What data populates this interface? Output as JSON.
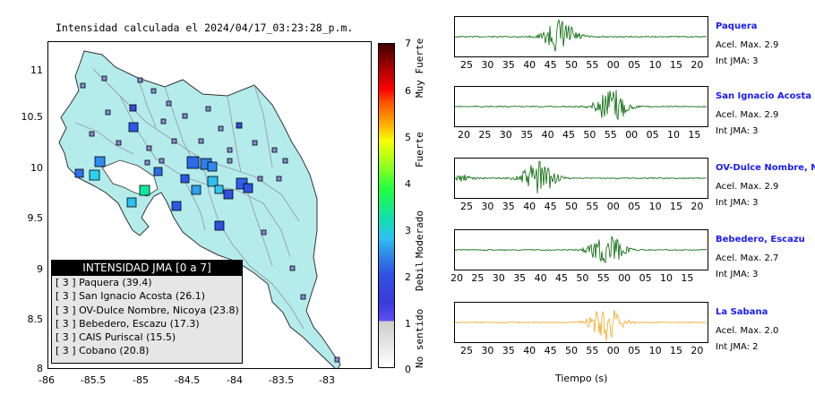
{
  "map": {
    "title": "Intensidad calculada el 2024/04/17_03:23:28_p.m.",
    "y_ticks": [
      "11",
      "10.5",
      "10",
      "9.5",
      "9",
      "8.5",
      "8"
    ],
    "x_ticks": [
      "-86",
      "-85.5",
      "-85",
      "-84.5",
      "-84",
      "-83.5",
      "-83"
    ],
    "legend": {
      "title": "INTENSIDAD JMA [0 a 7]",
      "rows": [
        "[ 3 ]  Paquera (39.4)",
        "[ 3 ]  San Ignacio Acosta (26.1)",
        "[ 3 ]  OV-Dulce Nombre, Nicoya (23.8)",
        "[ 3 ]  Bebedero, Escazu (17.3)",
        "[ 3 ]  CAIS Puriscal (15.5)",
        "[ 3 ]  Cobano (20.8)"
      ]
    }
  },
  "colorbar": {
    "ticks": [
      "7",
      "6",
      "5",
      "4",
      "3",
      "2",
      "1",
      "0"
    ],
    "labels": [
      "Muy Fuerte",
      "Fuerte",
      "Moderado",
      "Debil",
      "No sentido"
    ]
  },
  "traces": [
    {
      "name": "Paquera",
      "acel": "Acel. Max. 2.9",
      "int": "Int JMA: 3",
      "color": "#006400",
      "ticks": [
        "25",
        "30",
        "35",
        "40",
        "45",
        "50",
        "55",
        "00",
        "05",
        "10",
        "15",
        "20"
      ]
    },
    {
      "name": "San Ignacio Acosta",
      "acel": "Acel. Max. 2.9",
      "int": "Int JMA: 3",
      "color": "#006400",
      "ticks": [
        "20",
        "25",
        "30",
        "35",
        "40",
        "45",
        "50",
        "55",
        "00",
        "05",
        "10",
        "15"
      ]
    },
    {
      "name": "OV-Dulce Nombre, Nicoya",
      "acel": "Acel. Max. 2.9",
      "int": "Int JMA: 3",
      "color": "#006400",
      "ticks": [
        "25",
        "30",
        "35",
        "40",
        "45",
        "50",
        "55",
        "00",
        "05",
        "10",
        "15",
        "20"
      ]
    },
    {
      "name": "Bebedero, Escazu",
      "acel": "Acel. Max. 2.7",
      "int": "Int JMA: 3",
      "color": "#006400",
      "ticks": [
        "20",
        "25",
        "30",
        "35",
        "40",
        "45",
        "50",
        "55",
        "00",
        "05",
        "10",
        "15"
      ]
    },
    {
      "name": "La Sabana",
      "acel": "Acel. Max. 2.0",
      "int": "Int JMA: 2",
      "color": "#f5a623",
      "ticks": [
        "25",
        "30",
        "35",
        "40",
        "45",
        "50",
        "55",
        "00",
        "05",
        "10",
        "15",
        "20"
      ]
    }
  ],
  "x_axis_label": "Tiempo (s)"
}
